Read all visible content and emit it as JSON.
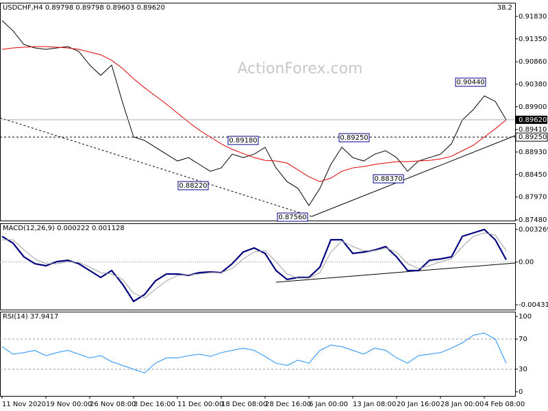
{
  "chart_data": [
    {
      "type": "line",
      "title": "USDCHF,H4 0.89798 0.89798 0.89603 0.89620",
      "corner_label": "38.2",
      "watermark": "ActionForex.com",
      "categories": [
        "11 Nov 2020",
        null,
        null,
        null,
        "19 Nov 00:00",
        null,
        null,
        null,
        "26 Nov 08:00",
        null,
        null,
        null,
        "3 Dec 16:00",
        null,
        null,
        null,
        "11 Dec 00:00",
        null,
        null,
        null,
        "18 Dec 08:00",
        null,
        null,
        null,
        "28 Dec 16:00",
        null,
        null,
        null,
        "6 Jan 00:00",
        null,
        null,
        null,
        "13 Jan 08:00",
        null,
        null,
        null,
        "20 Jan 16:00",
        null,
        null,
        null,
        "28 Jan 00:00",
        null,
        null,
        null,
        "4 Feb 08:00",
        null,
        null
      ],
      "series": [
        {
          "color": "#000000",
          "values": [
            0.91742,
            0.91522,
            0.91229,
            0.91156,
            0.91127,
            0.91156,
            0.91185,
            0.91083,
            0.9079,
            0.9057,
            0.9079,
            0.89984,
            0.89252,
            0.89178,
            0.89032,
            0.88885,
            0.88739,
            0.88812,
            0.88666,
            0.88519,
            0.88592,
            0.88885,
            0.88812,
            0.88885,
            0.89032,
            0.88592,
            0.88299,
            0.88153,
            0.87787,
            0.88153,
            0.88666,
            0.89032,
            0.88812,
            0.88739,
            0.88885,
            0.88959,
            0.88812,
            0.88519,
            0.88739,
            0.88812,
            0.88885,
            0.89105,
            0.89618,
            0.89838,
            0.90131,
            0.90014,
            0.8962
          ]
        },
        {
          "color": "#e00000",
          "values": [
            0.91127,
            0.91156,
            0.91171,
            0.91185,
            0.91185,
            0.91171,
            0.91156,
            0.91127,
            0.91068,
            0.9101,
            0.90892,
            0.90717,
            0.90497,
            0.90306,
            0.90131,
            0.89955,
            0.89764,
            0.89574,
            0.89398,
            0.89252,
            0.89105,
            0.88988,
            0.889,
            0.88812,
            0.88753,
            0.88739,
            0.88695,
            0.88548,
            0.88402,
            0.88299,
            0.88373,
            0.88519,
            0.88592,
            0.88621,
            0.88666,
            0.88695,
            0.88724,
            0.88724,
            0.88739,
            0.88753,
            0.88783,
            0.88841,
            0.88959,
            0.89075,
            0.89252,
            0.89427,
            0.89618
          ]
        }
      ],
      "ylim": [
        0.87465,
        0.92123
      ],
      "yticks": [
        {
          "value": 0.9183,
          "label": "0.91830"
        },
        {
          "value": 0.9135,
          "label": "0.91350"
        },
        {
          "value": 0.9086,
          "label": "0.90860"
        },
        {
          "value": 0.9038,
          "label": "0.90380"
        },
        {
          "value": 0.899,
          "label": "0.89900"
        },
        {
          "value": 0.8941,
          "label": "0.89410"
        },
        {
          "value": 0.8893,
          "label": "0.88930"
        },
        {
          "value": 0.8845,
          "label": "0.88450"
        },
        {
          "value": 0.8797,
          "label": "0.87970"
        },
        {
          "value": 0.8748,
          "label": "0.87480"
        }
      ],
      "price_line": {
        "value": 0.8962,
        "label": "0.89620"
      },
      "level_line": {
        "value": 0.8925,
        "label": "0.89250"
      },
      "annotations": [
        "0.90440",
        "0.89180",
        "0.89250",
        "0.88220",
        "0.88370",
        "0.87560"
      ]
    },
    {
      "type": "line",
      "title": "MACD(12,26,9) 0.000222 0.001128",
      "series": [
        {
          "color": "#000080",
          "values": [
            0.002579,
            0.00189,
            0.000511,
            -0.000179,
            -0.000386,
            2.8e-05,
            0.000166,
            -0.000179,
            -0.000868,
            -0.001558,
            -0.000868,
            -0.002247,
            -0.003971,
            -0.003281,
            -0.001902,
            -0.001213,
            -0.001213,
            -0.001351,
            -0.001075,
            -0.001006,
            -0.001075,
            -0.000179,
            0.000994,
            0.001407,
            0.000856,
            -0.000868,
            -0.001765,
            -0.001558,
            -0.001558,
            -0.000523,
            0.002235,
            0.002235,
            0.000856,
            0.000994,
            0.0012,
            0.001545,
            0.000511,
            -0.000868,
            -0.000868,
            0.000166,
            0.000304,
            0.000511,
            0.002579,
            0.002924,
            0.003269,
            0.002235,
            0.000222
          ]
        },
        {
          "color": "#a0a0a0",
          "values": [
            0.002235,
            0.002235,
            0.0012,
            0.000304,
            -0.000179,
            -0.000179,
            2.8e-05,
            -4.1e-05,
            -0.000523,
            -0.001075,
            -0.001213,
            -0.001765,
            -0.003144,
            -0.003626,
            -0.00273,
            -0.001902,
            -0.001351,
            -0.001282,
            -0.001213,
            -0.001075,
            -0.001075,
            -0.000661,
            0.000304,
            0.000994,
            0.001132,
            2.8e-05,
            -0.001213,
            -0.001627,
            -0.001627,
            -0.001075,
            0.000994,
            0.002097,
            0.001545,
            0.001132,
            0.001132,
            0.001407,
            0.000994,
            -0.000179,
            -0.000661,
            -0.000386,
            2.8e-05,
            0.000304,
            0.001545,
            0.002579,
            0.002924,
            0.002717,
            0.001128
          ]
        }
      ],
      "ylim": [
        -0.004799,
        0.00389
      ],
      "yticks": [
        0.003269,
        {
          "value": 0,
          "label": "0.00"
        },
        -0.004316
      ]
    },
    {
      "type": "line",
      "title": "RSI(14) 37.9417",
      "series": [
        {
          "color": "#1e90ff",
          "values": [
            60,
            50,
            52,
            55,
            48,
            52,
            55,
            50,
            45,
            48,
            40,
            35,
            30,
            25,
            38,
            45,
            45,
            48,
            50,
            47,
            52,
            55,
            58,
            55,
            47,
            38,
            35,
            42,
            38,
            55,
            62,
            60,
            55,
            50,
            58,
            55,
            45,
            38,
            48,
            50,
            52,
            58,
            65,
            75,
            78,
            70,
            37.9417
          ]
        }
      ],
      "ylim": [
        -5.5,
        106.4
      ],
      "yticks": [
        100,
        70,
        30,
        0
      ],
      "levels": [
        70,
        30
      ]
    }
  ]
}
